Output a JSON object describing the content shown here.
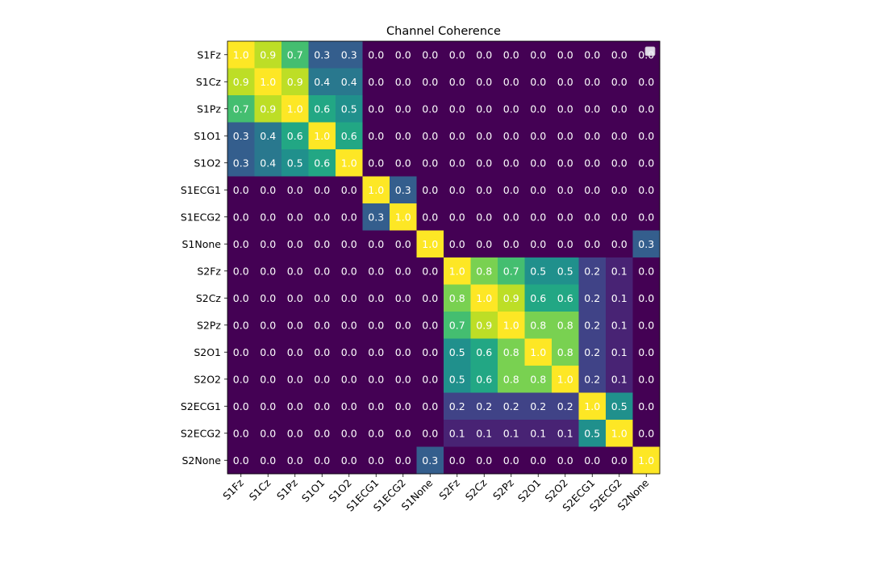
{
  "chart_data": {
    "type": "heatmap",
    "title": "Channel Coherence",
    "xlabel": "",
    "ylabel": "",
    "x_categories": [
      "S1Fz",
      "S1Cz",
      "S1Pz",
      "S1O1",
      "S1O2",
      "S1ECG1",
      "S1ECG2",
      "S1None",
      "S2Fz",
      "S2Cz",
      "S2Pz",
      "S2O1",
      "S2O2",
      "S2ECG1",
      "S2ECG2",
      "S2None"
    ],
    "y_categories": [
      "S1Fz",
      "S1Cz",
      "S1Pz",
      "S1O1",
      "S1O2",
      "S1ECG1",
      "S1ECG2",
      "S1None",
      "S2Fz",
      "S2Cz",
      "S2Pz",
      "S2O1",
      "S2O2",
      "S2ECG1",
      "S2ECG2",
      "S2None"
    ],
    "value_range": [
      0,
      1
    ],
    "colormap": "viridis",
    "grid": false,
    "values": [
      [
        1.0,
        0.9,
        0.7,
        0.3,
        0.3,
        0.0,
        0.0,
        0.0,
        0.0,
        0.0,
        0.0,
        0.0,
        0.0,
        0.0,
        0.0,
        0.0
      ],
      [
        0.9,
        1.0,
        0.9,
        0.4,
        0.4,
        0.0,
        0.0,
        0.0,
        0.0,
        0.0,
        0.0,
        0.0,
        0.0,
        0.0,
        0.0,
        0.0
      ],
      [
        0.7,
        0.9,
        1.0,
        0.6,
        0.5,
        0.0,
        0.0,
        0.0,
        0.0,
        0.0,
        0.0,
        0.0,
        0.0,
        0.0,
        0.0,
        0.0
      ],
      [
        0.3,
        0.4,
        0.6,
        1.0,
        0.6,
        0.0,
        0.0,
        0.0,
        0.0,
        0.0,
        0.0,
        0.0,
        0.0,
        0.0,
        0.0,
        0.0
      ],
      [
        0.3,
        0.4,
        0.5,
        0.6,
        1.0,
        0.0,
        0.0,
        0.0,
        0.0,
        0.0,
        0.0,
        0.0,
        0.0,
        0.0,
        0.0,
        0.0
      ],
      [
        0.0,
        0.0,
        0.0,
        0.0,
        0.0,
        1.0,
        0.3,
        0.0,
        0.0,
        0.0,
        0.0,
        0.0,
        0.0,
        0.0,
        0.0,
        0.0
      ],
      [
        0.0,
        0.0,
        0.0,
        0.0,
        0.0,
        0.3,
        1.0,
        0.0,
        0.0,
        0.0,
        0.0,
        0.0,
        0.0,
        0.0,
        0.0,
        0.0
      ],
      [
        0.0,
        0.0,
        0.0,
        0.0,
        0.0,
        0.0,
        0.0,
        1.0,
        0.0,
        0.0,
        0.0,
        0.0,
        0.0,
        0.0,
        0.0,
        0.3
      ],
      [
        0.0,
        0.0,
        0.0,
        0.0,
        0.0,
        0.0,
        0.0,
        0.0,
        1.0,
        0.8,
        0.7,
        0.5,
        0.5,
        0.2,
        0.1,
        0.0
      ],
      [
        0.0,
        0.0,
        0.0,
        0.0,
        0.0,
        0.0,
        0.0,
        0.0,
        0.8,
        1.0,
        0.9,
        0.6,
        0.6,
        0.2,
        0.1,
        0.0
      ],
      [
        0.0,
        0.0,
        0.0,
        0.0,
        0.0,
        0.0,
        0.0,
        0.0,
        0.7,
        0.9,
        1.0,
        0.8,
        0.8,
        0.2,
        0.1,
        0.0
      ],
      [
        0.0,
        0.0,
        0.0,
        0.0,
        0.0,
        0.0,
        0.0,
        0.0,
        0.5,
        0.6,
        0.8,
        1.0,
        0.8,
        0.2,
        0.1,
        0.0
      ],
      [
        0.0,
        0.0,
        0.0,
        0.0,
        0.0,
        0.0,
        0.0,
        0.0,
        0.5,
        0.6,
        0.8,
        0.8,
        1.0,
        0.2,
        0.1,
        0.0
      ],
      [
        0.0,
        0.0,
        0.0,
        0.0,
        0.0,
        0.0,
        0.0,
        0.0,
        0.2,
        0.2,
        0.2,
        0.2,
        0.2,
        1.0,
        0.5,
        0.0
      ],
      [
        0.0,
        0.0,
        0.0,
        0.0,
        0.0,
        0.0,
        0.0,
        0.0,
        0.1,
        0.1,
        0.1,
        0.1,
        0.1,
        0.5,
        1.0,
        0.0
      ],
      [
        0.0,
        0.0,
        0.0,
        0.0,
        0.0,
        0.0,
        0.0,
        0.3,
        0.0,
        0.0,
        0.0,
        0.0,
        0.0,
        0.0,
        0.0,
        1.0
      ]
    ]
  }
}
